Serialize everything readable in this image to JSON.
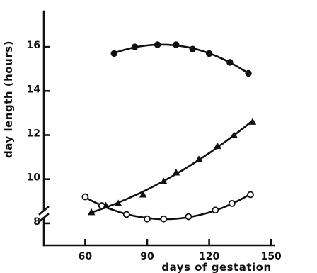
{
  "chart_data": {
    "type": "scatter",
    "title": "",
    "xlabel": "days of gestation",
    "ylabel": "day length (hours)",
    "xlim": [
      40,
      150
    ],
    "ylim": [
      7,
      16.5
    ],
    "y_axis_break": true,
    "xticks": [
      60,
      90,
      120,
      150
    ],
    "yticks": [
      8,
      10,
      12,
      14,
      16
    ],
    "grid": false,
    "legend": "none",
    "series": [
      {
        "marker": "filled-circle",
        "x": [
          74,
          84,
          95,
          104,
          112,
          120,
          130,
          139
        ],
        "y": [
          15.7,
          16.0,
          16.1,
          16.1,
          15.9,
          15.7,
          15.3,
          14.8
        ]
      },
      {
        "marker": "filled-triangle",
        "x": [
          63,
          70,
          76,
          88,
          98,
          104,
          115,
          124,
          132,
          141
        ],
        "y": [
          8.5,
          8.8,
          8.9,
          9.3,
          9.9,
          10.3,
          10.9,
          11.5,
          12.0,
          12.6
        ]
      },
      {
        "marker": "open-circle",
        "x": [
          60,
          68,
          80,
          90,
          98,
          110,
          123,
          131,
          140
        ],
        "y": [
          9.2,
          8.8,
          8.4,
          8.2,
          8.2,
          8.3,
          8.6,
          8.9,
          9.3
        ]
      }
    ]
  }
}
